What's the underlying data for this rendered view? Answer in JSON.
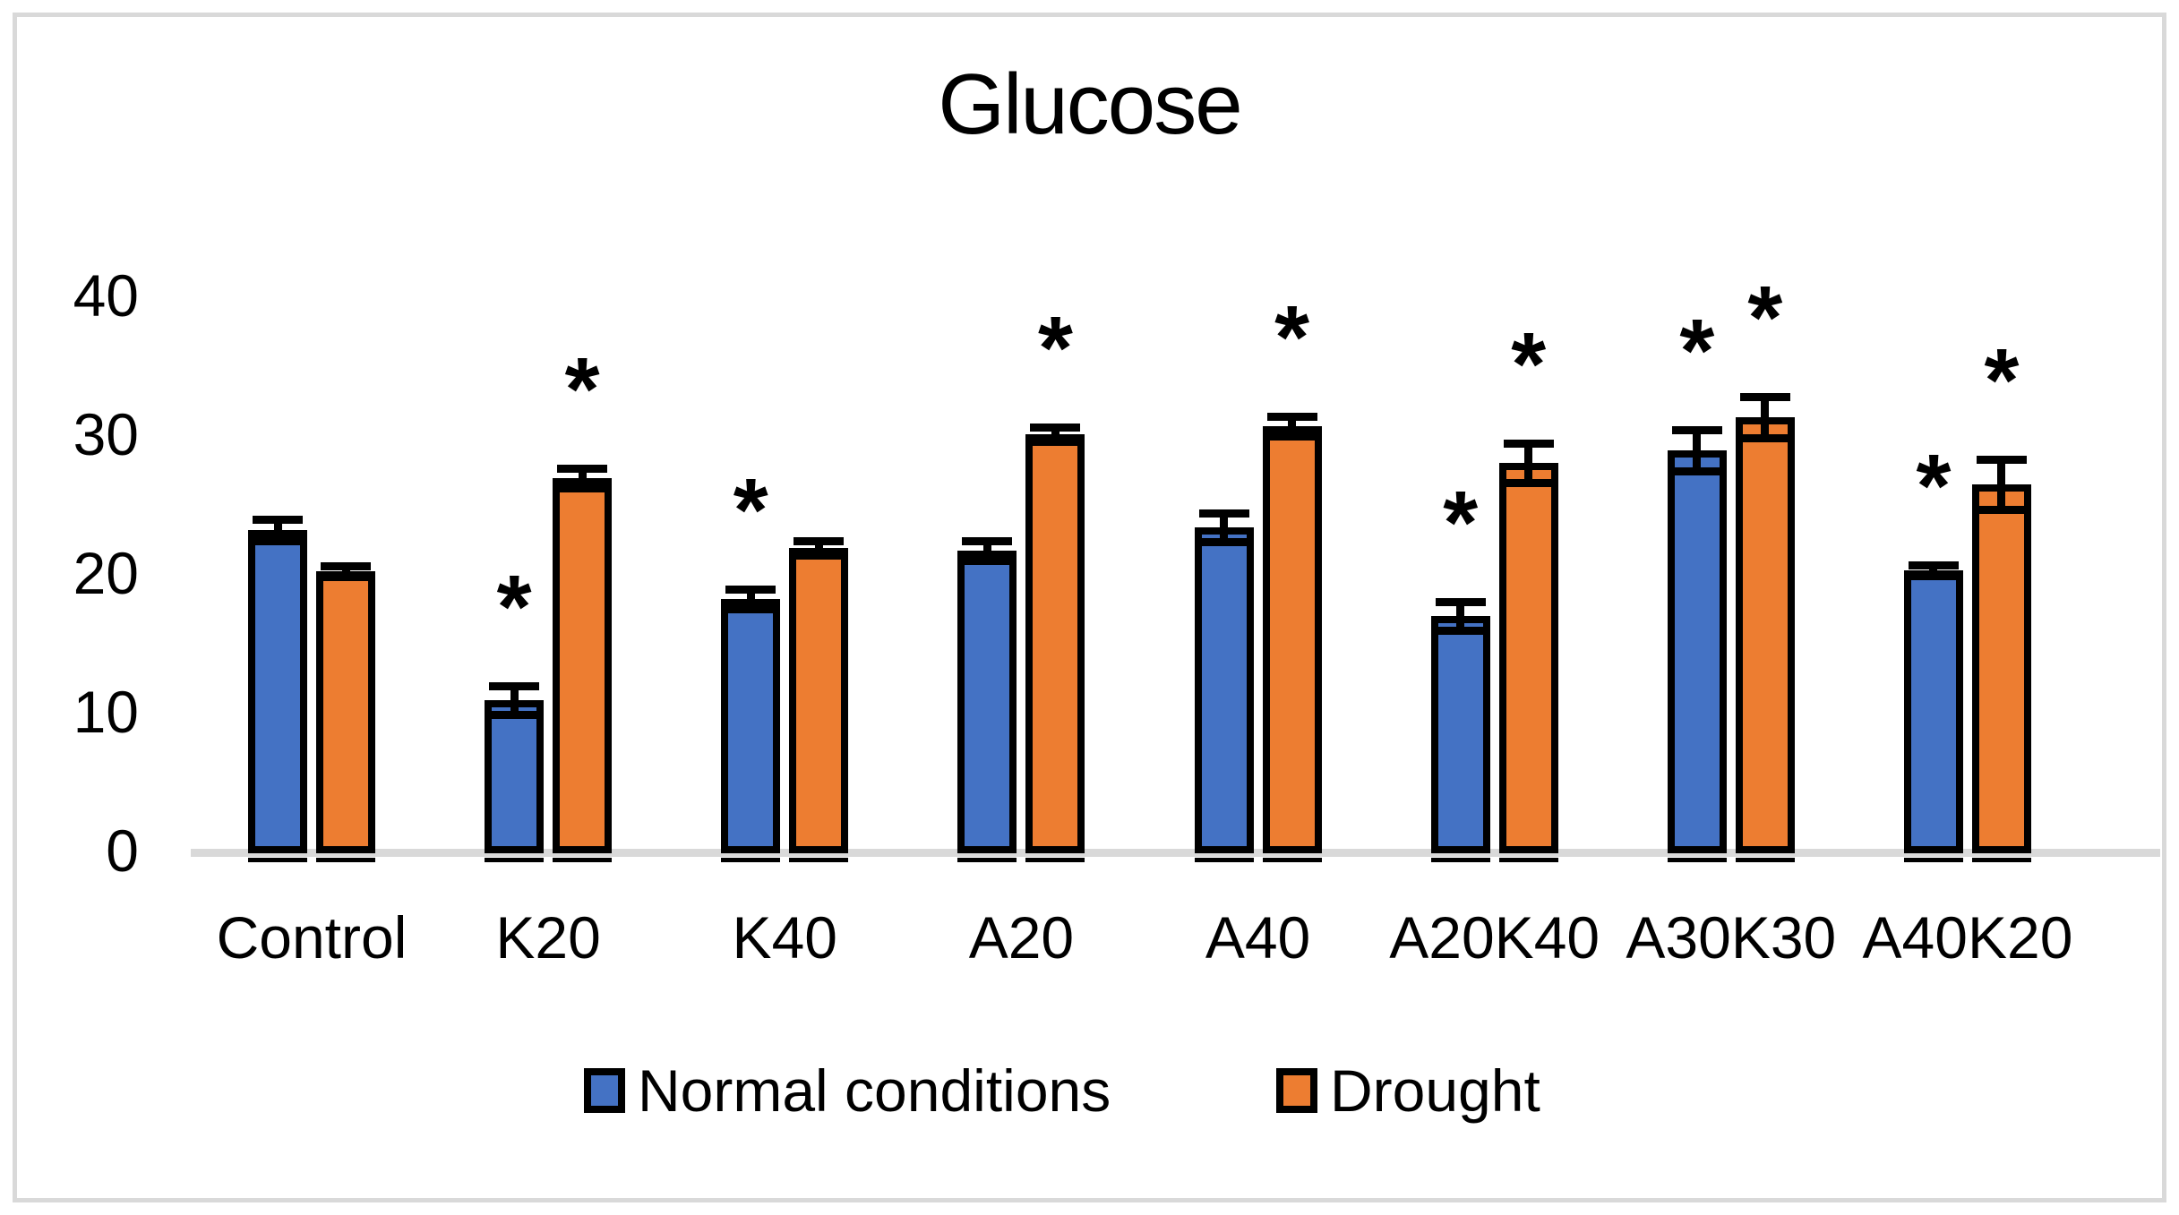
{
  "frame": {
    "border_color": "#d9d9d9"
  },
  "legend": {
    "items": [
      {
        "label": "Normal conditions",
        "color": "#4472C4"
      },
      {
        "label": "Drought",
        "color": "#ED7D31"
      }
    ]
  },
  "chart_data": {
    "type": "bar",
    "title": "Glucose",
    "categories": [
      "Control",
      "K20",
      "K40",
      "A20",
      "A40",
      "A20K40",
      "A30K30",
      "A40K20"
    ],
    "series": [
      {
        "name": "Normal conditions",
        "color": "#4472C4",
        "values": [
          23.3,
          11.0,
          18.3,
          21.8,
          23.5,
          17.1,
          29.0,
          20.4
        ],
        "errors": [
          0.8,
          1.0,
          0.7,
          0.7,
          1.0,
          1.0,
          1.5,
          0.4
        ],
        "significant": [
          false,
          true,
          true,
          false,
          false,
          true,
          true,
          true
        ]
      },
      {
        "name": "Drought",
        "color": "#ED7D31",
        "values": [
          20.3,
          27.0,
          22.0,
          30.2,
          30.8,
          28.1,
          31.4,
          26.6
        ],
        "errors": [
          0.4,
          0.7,
          0.5,
          0.5,
          0.7,
          1.4,
          1.5,
          1.8
        ],
        "significant": [
          false,
          true,
          false,
          true,
          true,
          true,
          true,
          true
        ]
      }
    ],
    "xlabel": "",
    "ylabel": "",
    "ylim": [
      0,
      40
    ],
    "yticks": [
      0,
      10,
      20,
      30,
      40
    ],
    "grid": false,
    "legend_position": "bottom",
    "significance_marker": "*",
    "bar_outline_color": "#000000",
    "error_bar_color": "#000000",
    "axis_line_color": "#d9d9d9"
  }
}
